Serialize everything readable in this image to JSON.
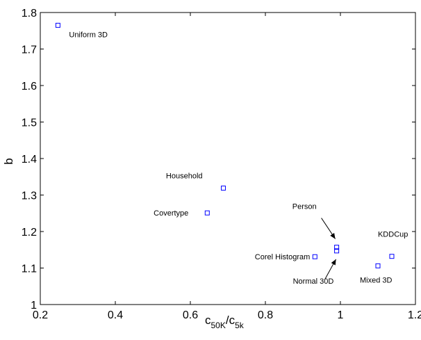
{
  "colors": {
    "marker": "#0000ff",
    "axis": "#000000",
    "background": "#ffffff"
  },
  "chart_data": {
    "type": "scatter",
    "title": "",
    "xlabel": {
      "main1": "c",
      "sub1": "50K",
      "sep": "/c",
      "sub2": "5k"
    },
    "ylabel": "b",
    "xlim": [
      0.2,
      1.2
    ],
    "ylim": [
      1.0,
      1.8
    ],
    "xticks": [
      0.2,
      0.4,
      0.6,
      0.8,
      1.0,
      1.2
    ],
    "xtick_labels": [
      "0.2",
      "0.4",
      "0.6",
      "0.8",
      "1",
      "1.2"
    ],
    "yticks": [
      1.0,
      1.1,
      1.2,
      1.3,
      1.4,
      1.5,
      1.6,
      1.7,
      1.8
    ],
    "ytick_labels": [
      "1",
      "1.1",
      "1.2",
      "1.3",
      "1.4",
      "1.5",
      "1.6",
      "1.7",
      "1.8"
    ],
    "grid": false,
    "legend": "none",
    "marker": "square",
    "points": [
      {
        "name": "Uniform 3D",
        "x": 0.247,
        "y": 1.765
      },
      {
        "name": "Household",
        "x": 0.688,
        "y": 1.319
      },
      {
        "name": "Covertype",
        "x": 0.645,
        "y": 1.251
      },
      {
        "name": "Corel Histogram",
        "x": 0.932,
        "y": 1.131
      },
      {
        "name": "Person",
        "x": 0.99,
        "y": 1.157
      },
      {
        "name": "Normal 30D",
        "x": 0.99,
        "y": 1.147
      },
      {
        "name": "KDDCup",
        "x": 1.137,
        "y": 1.132
      },
      {
        "name": "Mixed 3D",
        "x": 1.1,
        "y": 1.106
      }
    ]
  }
}
